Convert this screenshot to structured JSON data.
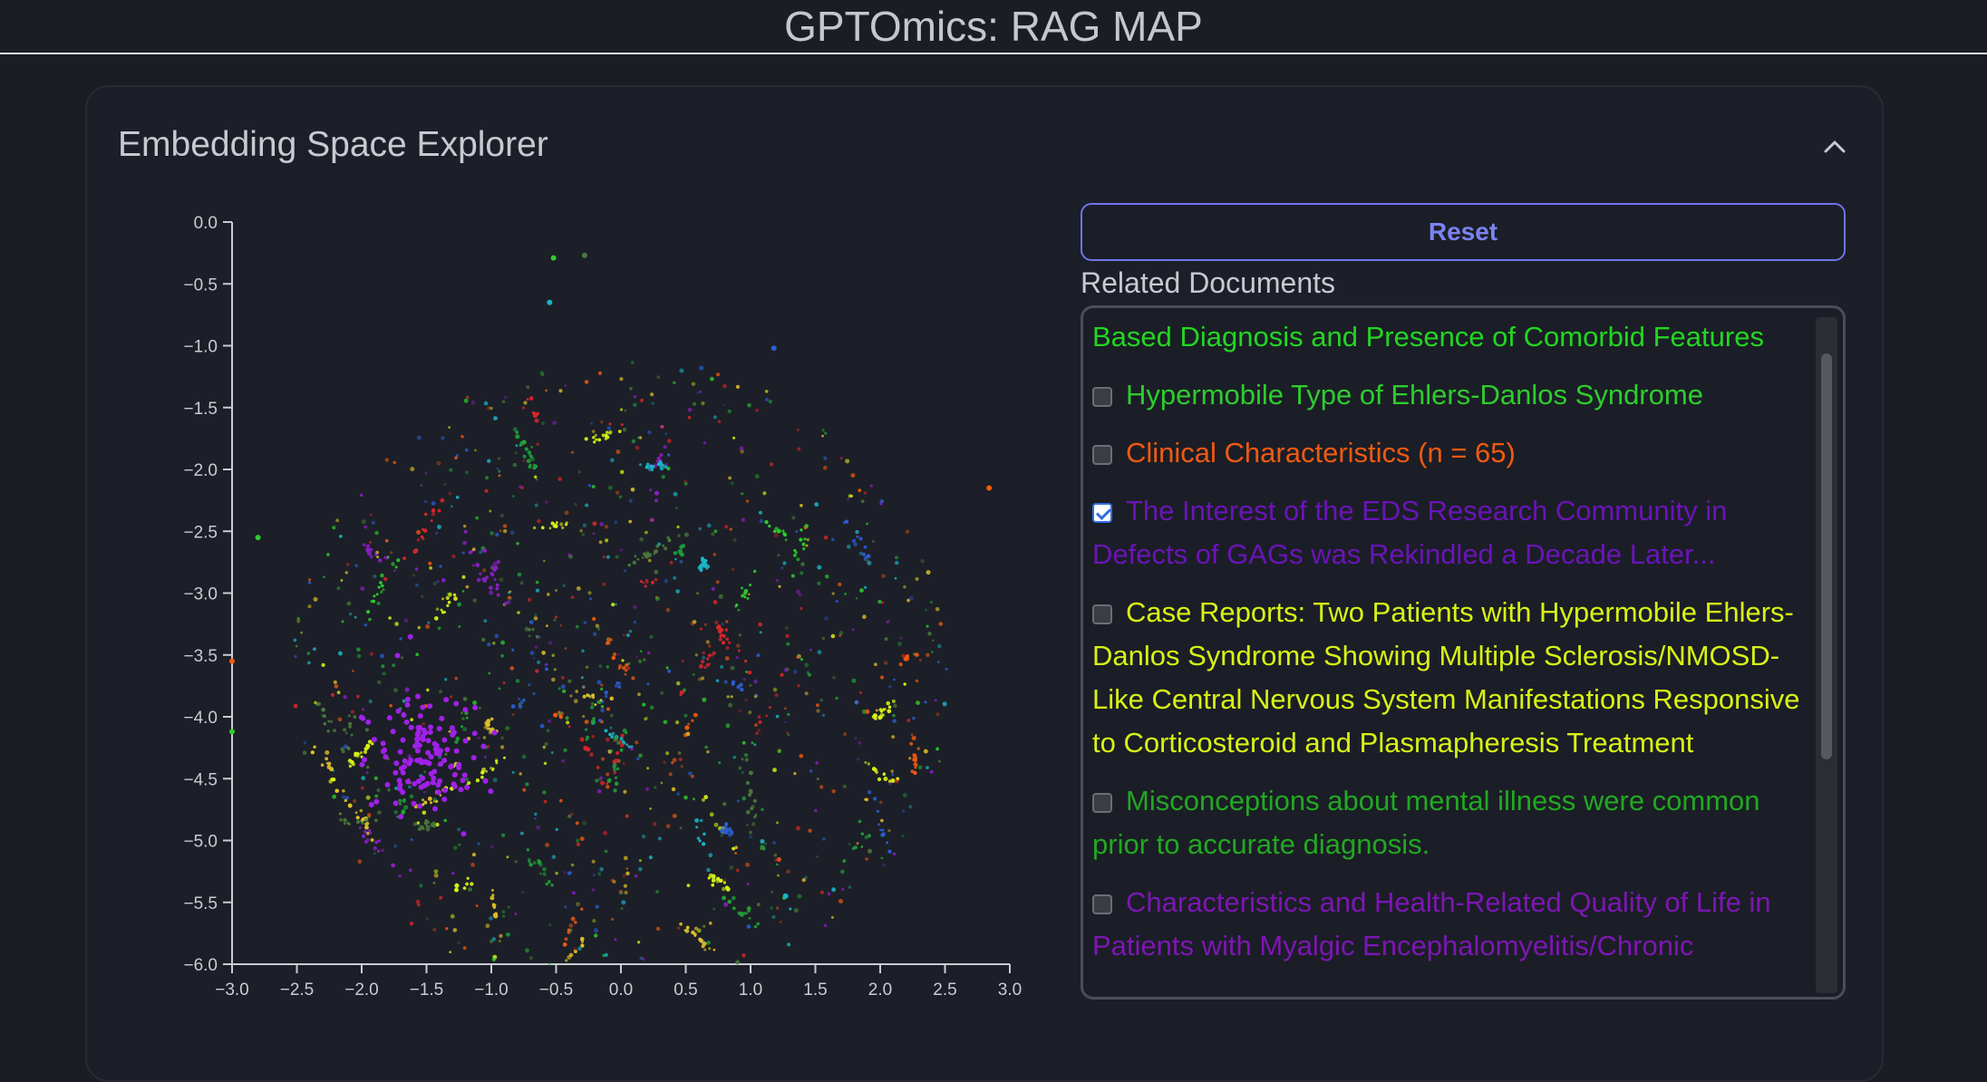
{
  "header": {
    "title": "GPTOmics: RAG MAP"
  },
  "panel": {
    "title": "Embedding Space Explorer",
    "collapse_icon": "chevron-up-icon"
  },
  "reset_label": "Reset",
  "related_label": "Related Documents",
  "documents": [
    {
      "text": "Based Diagnosis and Presence of Comorbid Features",
      "color": "#22d622",
      "checkbox": false,
      "checked": false
    },
    {
      "text": "Hypermobile Type of Ehlers-Danlos Syndrome",
      "color": "#2ecc2e",
      "checkbox": true,
      "checked": false
    },
    {
      "text": "Clinical Characteristics (n = 65)",
      "color": "#f05a12",
      "checkbox": true,
      "checked": false
    },
    {
      "text": "The Interest of the EDS Research Community in Defects of GAGs was Rekindled a Decade Later...",
      "color": "#6a14b8",
      "checkbox": true,
      "checked": true
    },
    {
      "text": "Case Reports: Two Patients with Hypermobile Ehlers-Danlos Syndrome Showing Multiple Sclerosis/NMOSD-Like Central Nervous System Manifestations Responsive to Corticosteroid and Plasmapheresis Treatment",
      "color": "#d8f216",
      "checkbox": true,
      "checked": false
    },
    {
      "text": "Misconceptions about mental illness were common prior to accurate diagnosis.",
      "color": "#22a822",
      "checkbox": true,
      "checked": false
    },
    {
      "text": "Characteristics and Health-Related Quality of Life in Patients with Myalgic Encephalomyelitis/Chronic",
      "color": "#7d16b4",
      "checkbox": true,
      "checked": false
    }
  ],
  "chart_data": {
    "type": "scatter",
    "xlim": [
      -3.0,
      3.0
    ],
    "ylim": [
      -6.0,
      0.0
    ],
    "x_ticks": [
      "−3.0",
      "−2.5",
      "−2.0",
      "−1.5",
      "−1.0",
      "−0.5",
      "0.0",
      "0.5",
      "1.0",
      "1.5",
      "2.0",
      "2.5",
      "3.0"
    ],
    "y_ticks": [
      "0.0",
      "−0.5",
      "−1.0",
      "−1.5",
      "−2.0",
      "−2.5",
      "−3.0",
      "−3.5",
      "−4.0",
      "−4.5",
      "−5.0",
      "−5.5",
      "−6.0"
    ],
    "colors": [
      "#2ecc2e",
      "#1f9e3a",
      "#2a5fd4",
      "#1bb5c9",
      "#e0c12a",
      "#d8f216",
      "#d9262a",
      "#8a1fc4",
      "#f05a12",
      "#4a7a3a"
    ],
    "cloud": {
      "center": [
        0.0,
        -3.7
      ],
      "radius": [
        2.55,
        2.6
      ],
      "approx_points": 3000
    },
    "highlight_cluster": {
      "color": "#a020e8",
      "center": [
        -1.5,
        -4.3
      ],
      "spread": [
        0.22,
        0.25
      ]
    },
    "outliers": [
      {
        "x": -0.55,
        "y": -0.65,
        "color": "#1bb5c9"
      },
      {
        "x": -0.52,
        "y": -0.29,
        "color": "#2ecc2e"
      },
      {
        "x": -0.28,
        "y": -0.27,
        "color": "#4a7a3a"
      },
      {
        "x": 1.18,
        "y": -1.02,
        "color": "#2a5fd4"
      },
      {
        "x": 2.84,
        "y": -2.15,
        "color": "#f05a12"
      },
      {
        "x": -2.8,
        "y": -2.55,
        "color": "#2ecc2e"
      },
      {
        "x": -3.0,
        "y": -3.55,
        "color": "#f05a12"
      },
      {
        "x": -3.0,
        "y": -4.12,
        "color": "#2ecc2e"
      },
      {
        "x": 1.27,
        "y": -5.45,
        "color": "#1bb5c9"
      }
    ]
  }
}
